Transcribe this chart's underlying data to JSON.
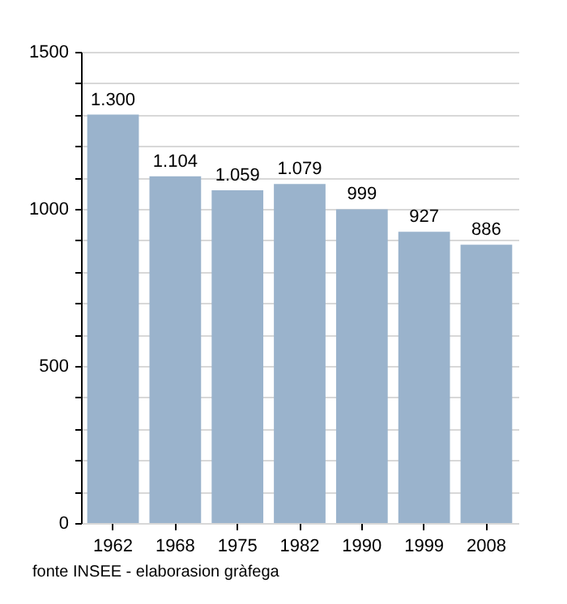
{
  "chart_data": {
    "type": "bar",
    "categories": [
      "1962",
      "1968",
      "1975",
      "1982",
      "1990",
      "1999",
      "2008"
    ],
    "values": [
      1300,
      1104,
      1059,
      1079,
      999,
      927,
      886
    ],
    "value_labels": [
      "1.300",
      "1.104",
      "1.059",
      "1.079",
      "999",
      "927",
      "886"
    ],
    "color": "#9ab3cc",
    "ylim": [
      0,
      1500
    ],
    "yticks": [
      0,
      {
        "value": 100,
        "label": null
      },
      {
        "value": 200,
        "label": null
      },
      {
        "value": 300,
        "label": null
      },
      {
        "value": 400,
        "label": null
      },
      500,
      {
        "value": 600,
        "label": null
      },
      {
        "value": 700,
        "label": null
      },
      {
        "value": 800,
        "label": null
      },
      {
        "value": 900,
        "label": null
      },
      1000,
      {
        "value": 1100,
        "label": null
      },
      {
        "value": 1200,
        "label": null
      },
      {
        "value": 1300,
        "label": null
      },
      {
        "value": 1400,
        "label": null
      },
      1500
    ],
    "grid": true,
    "annotations": [
      "fonte INSEE - elaborasion gràfega"
    ]
  }
}
